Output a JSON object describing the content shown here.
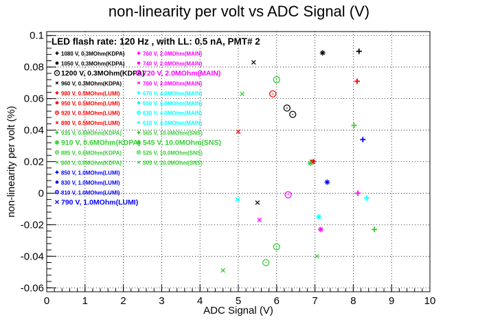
{
  "chart_data": {
    "type": "scatter",
    "title": "non-linearity per volt vs ADC Signal (V)",
    "xlabel": "ADC Signal (V)",
    "ylabel": "non-linearity per volt (%)",
    "xlim": [
      0,
      10
    ],
    "ylim": [
      -0.0625,
      0.1025
    ],
    "x_ticks": [
      "0",
      "1",
      "2",
      "3",
      "4",
      "5",
      "6",
      "7",
      "8",
      "9",
      "10"
    ],
    "y_ticks": [
      "-0.06",
      "-0.04",
      "-0.02",
      "0",
      "0.02",
      "0.04",
      "0.06",
      "0.08",
      "0.1"
    ],
    "grid": true,
    "header_text": "LED flash rate: 120 Hz , with LL: 0.5 nA, PMT# 2",
    "legend_position": "top-left",
    "colors": {
      "black": "#000000",
      "magenta": "#ff00ff",
      "red": "#ff0000",
      "cyan": "#00ffff",
      "green": "#33cc33",
      "blue": "#0000ff"
    },
    "legend_columns": [
      [
        {
          "marker": "+",
          "color": "black",
          "label": "1080 V, 0.3MOhm(KDPA)",
          "size": "s"
        },
        {
          "marker": "*",
          "color": "black",
          "label": "1050 V, 0.3MOhm(KDPA)",
          "size": "s"
        },
        {
          "marker": "o",
          "color": "black",
          "label": "1200 V, 0.3MOhm(KDPA)",
          "size": "l"
        },
        {
          "marker": "x",
          "color": "black",
          "label": "960 V, 0.3MOhm(KDPA)",
          "size": "s"
        },
        {
          "marker": "+",
          "color": "red",
          "label": "980 V, 0.5MOhm(LUMI)",
          "size": "s"
        },
        {
          "marker": "*",
          "color": "red",
          "label": "950 V, 0.5MOhm(LUMI)",
          "size": "s"
        },
        {
          "marker": "o",
          "color": "red",
          "label": "920 V, 0.5MOhm(LUMI)",
          "size": "s"
        },
        {
          "marker": "x",
          "color": "red",
          "label": "890 V, 0.5MOhm(LUMI)",
          "size": "s"
        },
        {
          "marker": "+",
          "color": "green",
          "label": "935 V, 0.6MOhm(KDPA)",
          "size": "s"
        },
        {
          "marker": "*",
          "color": "green",
          "label": "910 V, 0.6MOhm(KDPA)",
          "size": "l"
        },
        {
          "marker": "o",
          "color": "green",
          "label": "885 V, 0.6MOhm(KDPA)",
          "size": "s"
        },
        {
          "marker": "x",
          "color": "green",
          "label": "860 V, 0.6MOhm(KDPA)",
          "size": "s"
        },
        {
          "marker": "+",
          "color": "blue",
          "label": "850 V, 1.0MOhm(LUMI)",
          "size": "s"
        },
        {
          "marker": "*",
          "color": "blue",
          "label": "830 V, 1.0MOhm(LUMI)",
          "size": "s"
        },
        {
          "marker": "o",
          "color": "blue",
          "label": "810 V, 1.0MOhm(LUMI)",
          "size": "s"
        },
        {
          "marker": "x",
          "color": "blue",
          "label": "790 V, 1.0MOhm(LUMI)",
          "size": "l"
        }
      ],
      [
        {
          "marker": "+",
          "color": "magenta",
          "label": "760 V, 2.0MOhm(MAIN)",
          "size": "s"
        },
        {
          "marker": "*",
          "color": "magenta",
          "label": "740 V, 2.0MOhm(MAIN)",
          "size": "s"
        },
        {
          "marker": "o",
          "color": "magenta",
          "label": "720 V, 2.0MOhm(MAIN)",
          "size": "l"
        },
        {
          "marker": "x",
          "color": "magenta",
          "label": "700 V, 2.0MOhm(MAIN)",
          "size": "s"
        },
        {
          "marker": "+",
          "color": "cyan",
          "label": "670 V, 4.0MOhm(MAIN)",
          "size": "s"
        },
        {
          "marker": "*",
          "color": "cyan",
          "label": "650 V, 4.0MOhm(MAIN)",
          "size": "s"
        },
        {
          "marker": "o",
          "color": "cyan",
          "label": "630 V, 4.0MOhm(MAIN)",
          "size": "s"
        },
        {
          "marker": "x",
          "color": "cyan",
          "label": "610 V, 4.0MOhm(MAIN)",
          "size": "s"
        },
        {
          "marker": "+",
          "color": "green",
          "label": "565 V, 10.0MOhm(SNS)",
          "size": "s"
        },
        {
          "marker": "*",
          "color": "green",
          "label": "545 V, 10.0MOhm(SNS)",
          "size": "l"
        },
        {
          "marker": "o",
          "color": "green",
          "label": "525 V, 10.0MOhm(SNS)",
          "size": "s"
        },
        {
          "marker": "x",
          "color": "green",
          "label": "505 V, 10.0MOhm(SNS)",
          "size": "s"
        }
      ]
    ],
    "series": [
      {
        "marker": "+",
        "color": "black",
        "points": [
          {
            "x": 8.15,
            "y": 0.09
          }
        ]
      },
      {
        "marker": "*",
        "color": "black",
        "points": [
          {
            "x": 7.2,
            "y": 0.089
          }
        ]
      },
      {
        "marker": "x",
        "color": "black",
        "points": [
          {
            "x": 5.4,
            "y": 0.083
          },
          {
            "x": 5.5,
            "y": -0.006
          }
        ]
      },
      {
        "marker": "o",
        "color": "black",
        "points": [
          {
            "x": 6.27,
            "y": 0.054
          },
          {
            "x": 6.42,
            "y": 0.05
          }
        ]
      },
      {
        "marker": "+",
        "color": "red",
        "points": [
          {
            "x": 8.1,
            "y": 0.071
          }
        ]
      },
      {
        "marker": "o",
        "color": "red",
        "points": [
          {
            "x": 5.9,
            "y": 0.063
          }
        ]
      },
      {
        "marker": "x",
        "color": "red",
        "points": [
          {
            "x": 5.0,
            "y": 0.039
          },
          {
            "x": 6.92,
            "y": 0.02
          }
        ]
      },
      {
        "marker": "*",
        "color": "red",
        "points": [
          {
            "x": 6.95,
            "y": 0.02
          }
        ]
      },
      {
        "marker": "o",
        "color": "green",
        "points": [
          {
            "x": 6.0,
            "y": 0.072
          },
          {
            "x": 5.72,
            "y": -0.044
          },
          {
            "x": 6.0,
            "y": -0.034
          }
        ]
      },
      {
        "marker": "x",
        "color": "green",
        "points": [
          {
            "x": 5.1,
            "y": 0.063
          },
          {
            "x": 4.6,
            "y": -0.049
          },
          {
            "x": 7.05,
            "y": -0.04
          }
        ]
      },
      {
        "marker": "+",
        "color": "green",
        "points": [
          {
            "x": 8.02,
            "y": 0.043
          },
          {
            "x": 8.55,
            "y": -0.023
          }
        ]
      },
      {
        "marker": "*",
        "color": "green",
        "points": [
          {
            "x": 6.88,
            "y": 0.019
          }
        ]
      },
      {
        "marker": "+",
        "color": "blue",
        "points": [
          {
            "x": 8.25,
            "y": 0.034
          }
        ]
      },
      {
        "marker": "*",
        "color": "blue",
        "points": [
          {
            "x": 7.32,
            "y": 0.007
          }
        ]
      },
      {
        "marker": "+",
        "color": "magenta",
        "points": [
          {
            "x": 8.12,
            "y": 0.0
          }
        ]
      },
      {
        "marker": "o",
        "color": "magenta",
        "points": [
          {
            "x": 6.3,
            "y": -0.001
          }
        ]
      },
      {
        "marker": "x",
        "color": "magenta",
        "points": [
          {
            "x": 5.55,
            "y": -0.017
          }
        ]
      },
      {
        "marker": "*",
        "color": "magenta",
        "points": [
          {
            "x": 7.15,
            "y": -0.023
          }
        ]
      },
      {
        "marker": "+",
        "color": "cyan",
        "points": [
          {
            "x": 8.35,
            "y": -0.003
          }
        ]
      },
      {
        "marker": "x",
        "color": "cyan",
        "points": [
          {
            "x": 4.98,
            "y": -0.004
          }
        ]
      },
      {
        "marker": "*",
        "color": "cyan",
        "points": [
          {
            "x": 7.1,
            "y": -0.015
          }
        ]
      }
    ]
  }
}
